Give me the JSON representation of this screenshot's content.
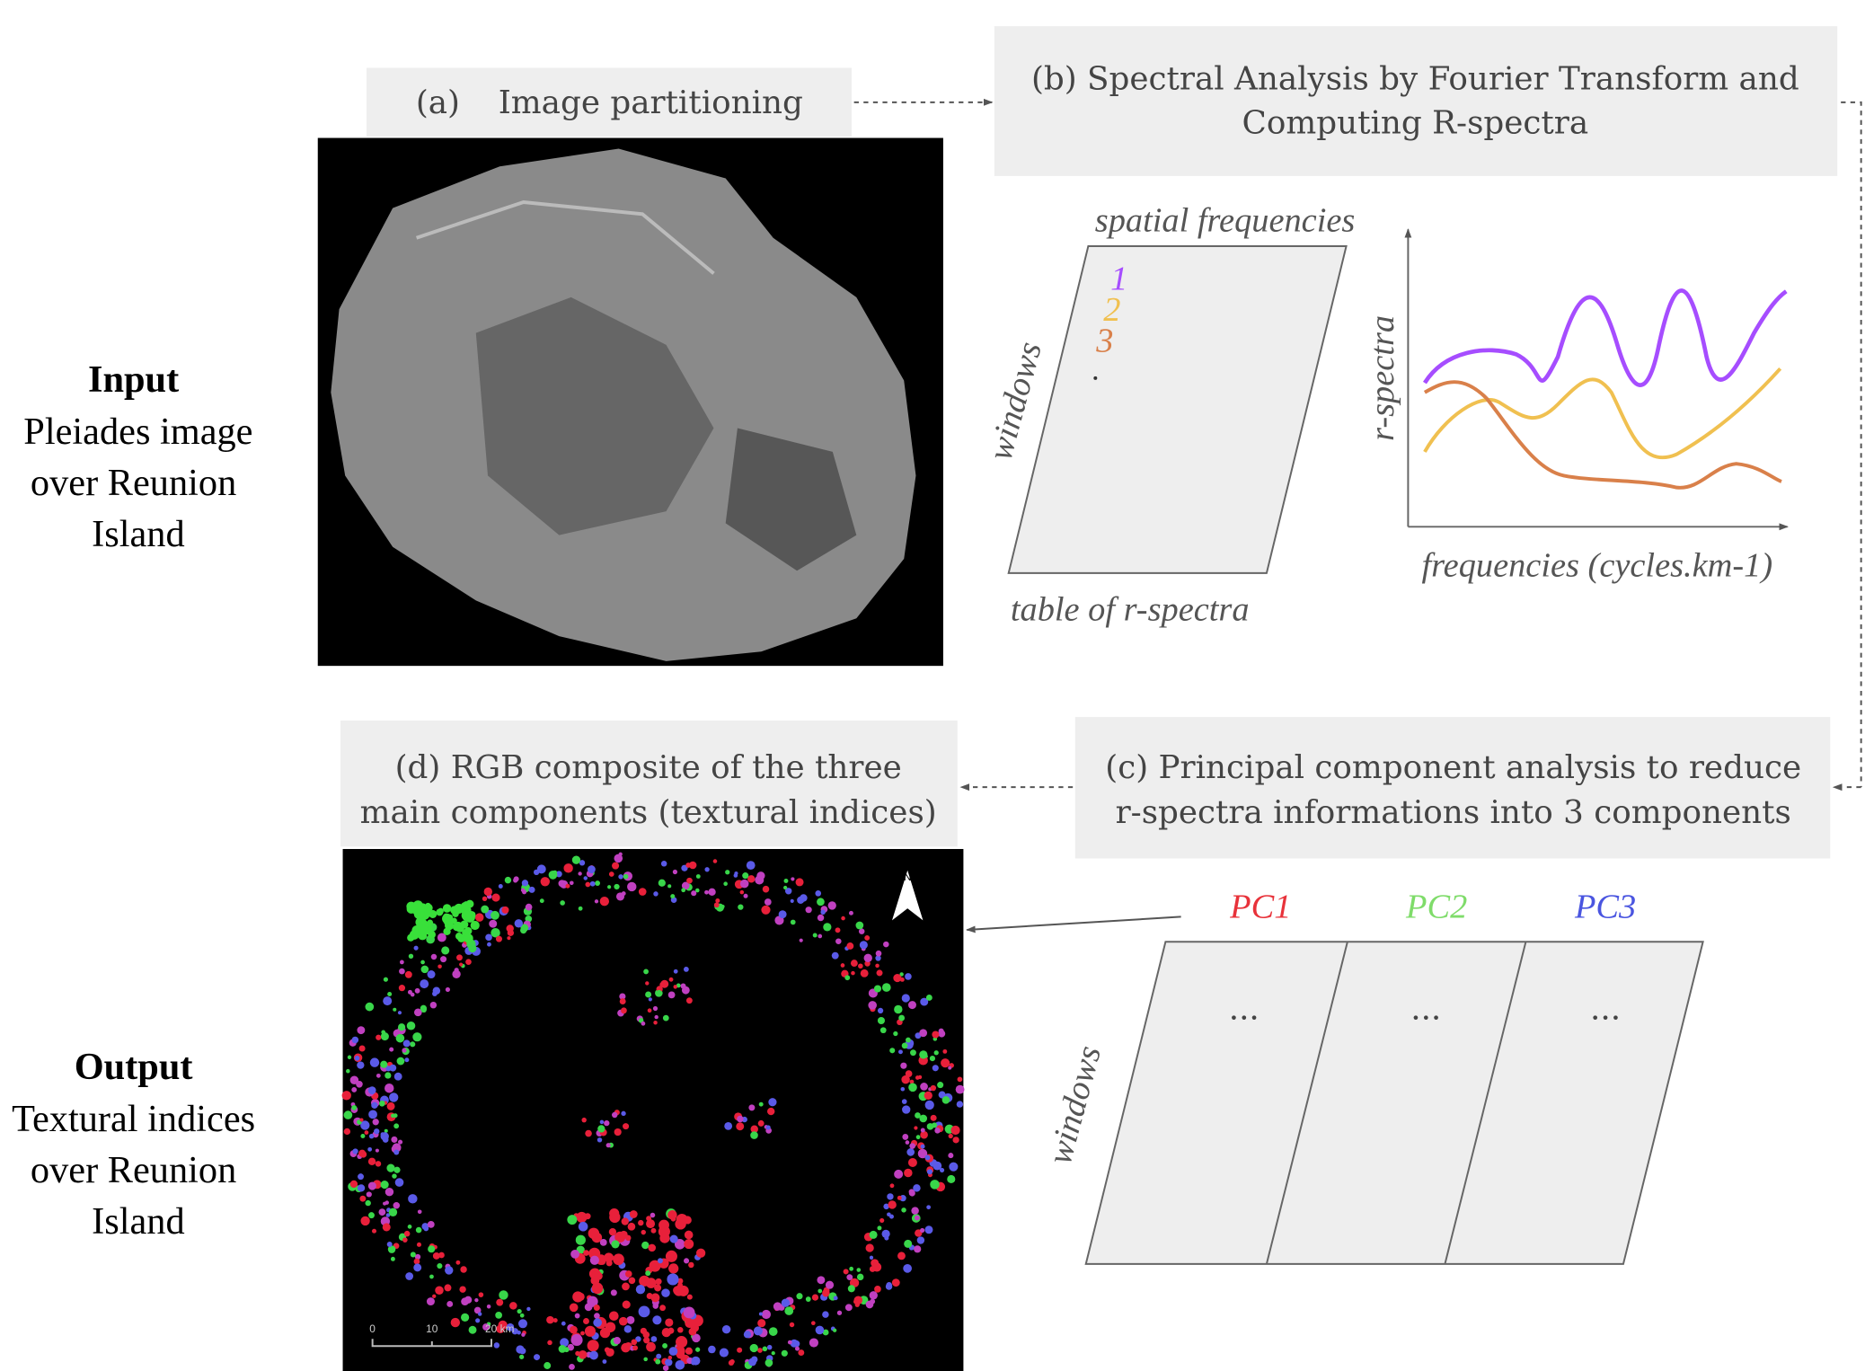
{
  "input": {
    "title": "Input",
    "lines": [
      "Pleiades image",
      "over Reunion",
      "Island"
    ]
  },
  "output": {
    "title": "Output",
    "lines": [
      "Textural indices",
      "over Reunion",
      "Island"
    ]
  },
  "steps": {
    "a": {
      "lines": [
        "(a)",
        "Image partitioning"
      ]
    },
    "b": {
      "lines": [
        "(b) Spectral Analysis by Fourier Transform and",
        "Computing R-spectra"
      ]
    },
    "c": {
      "lines": [
        "(c) Principal component analysis to reduce",
        "r-spectra informations into 3 components"
      ]
    },
    "d": {
      "lines": [
        "(d) RGB composite of the three",
        "main components (textural indices)"
      ]
    }
  },
  "spectra_table": {
    "top": "spatial frequencies",
    "side": "windows",
    "bottom": "table of r-spectra",
    "rows": [
      "1",
      "2",
      "3"
    ]
  },
  "spectra_plot": {
    "y_label": "r-spectra",
    "x_label": "frequencies (cycles.km-1)"
  },
  "pca": {
    "components": [
      "PC1",
      "PC2",
      "PC3"
    ],
    "cells": [
      "...",
      "...",
      "..."
    ],
    "side": "windows"
  },
  "map": {
    "north": "N",
    "scale": [
      "0",
      "10",
      "20 km"
    ]
  }
}
